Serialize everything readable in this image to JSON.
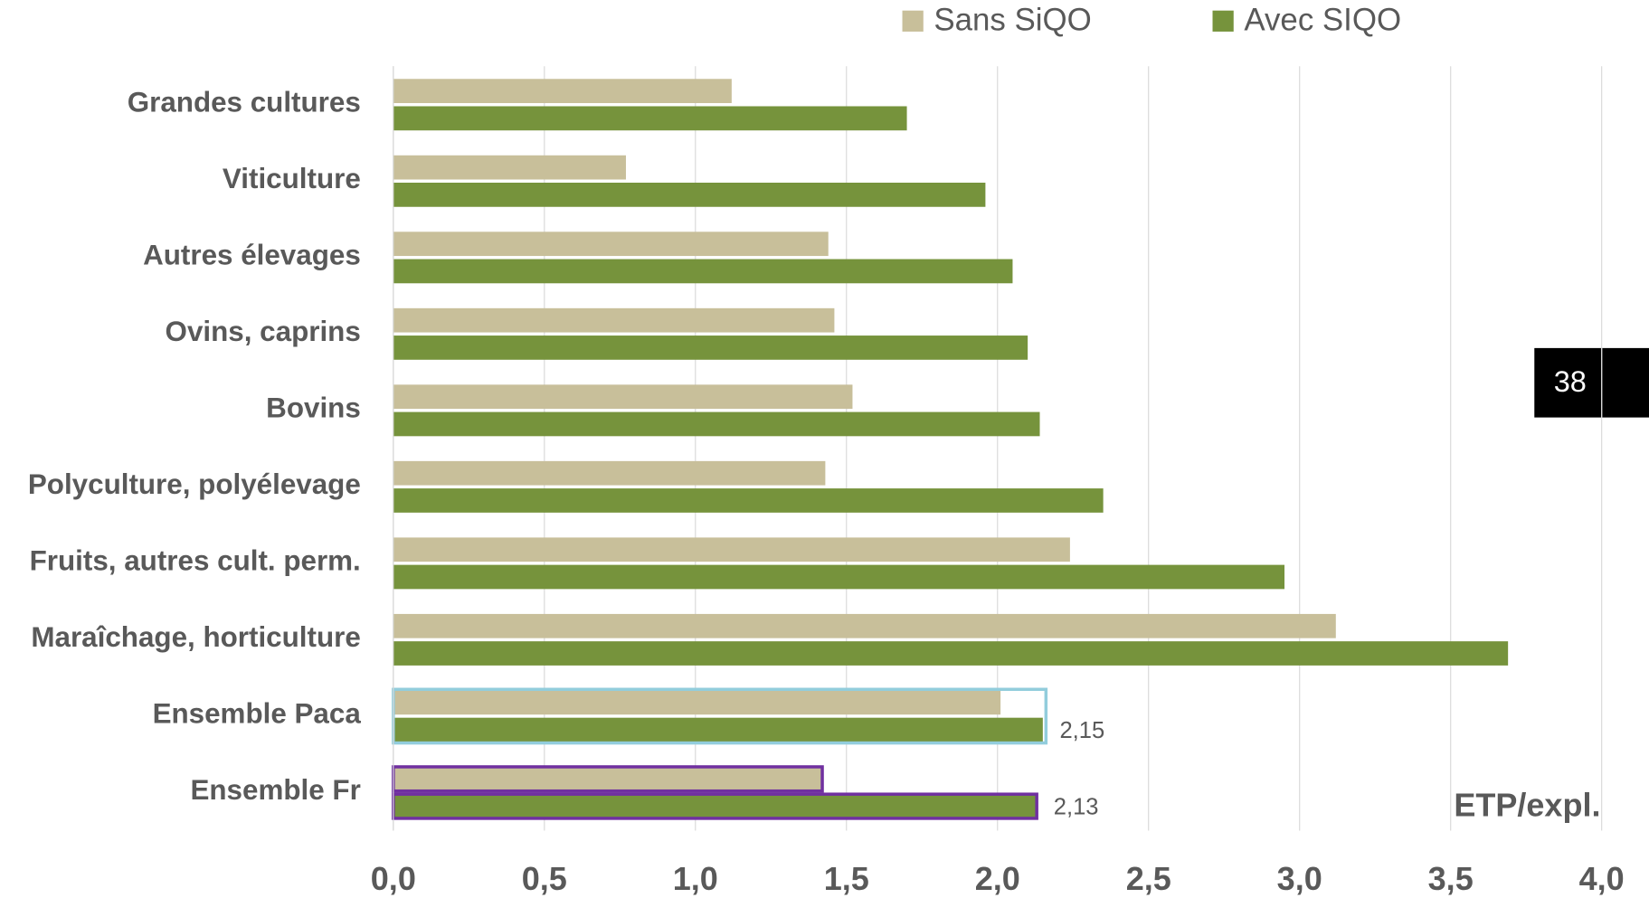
{
  "chart_data": {
    "type": "bar",
    "orientation": "horizontal",
    "categories": [
      "Grandes cultures",
      "Viticulture",
      "Autres élevages",
      "Ovins, caprins",
      "Bovins",
      "Polyculture, polyélevage",
      "Fruits, autres cult. perm.",
      "Maraîchage, horticulture",
      "Ensemble Paca",
      "Ensemble Fr"
    ],
    "series": [
      {
        "name": "Sans SiQO",
        "color": "#c8bf9a",
        "values": [
          1.12,
          0.77,
          1.44,
          1.46,
          1.52,
          1.43,
          2.24,
          3.12,
          2.01,
          1.42
        ]
      },
      {
        "name": "Avec SIQO",
        "color": "#76933c",
        "values": [
          1.7,
          1.96,
          2.05,
          2.1,
          2.14,
          2.35,
          2.95,
          3.69,
          2.15,
          2.13
        ],
        "value_labels": [
          null,
          null,
          null,
          null,
          null,
          null,
          null,
          null,
          "2,15",
          "2,13"
        ]
      }
    ],
    "highlight_colors": [
      null,
      null,
      null,
      null,
      null,
      null,
      null,
      null,
      "#92cddc",
      "#7030a0"
    ],
    "xlim": [
      0,
      4
    ],
    "xticks": [
      {
        "value": 0,
        "label": "0,0"
      },
      {
        "value": 0.5,
        "label": "0,5"
      },
      {
        "value": 1,
        "label": "1,0"
      },
      {
        "value": 1.5,
        "label": "1,5"
      },
      {
        "value": 2,
        "label": "2,0"
      },
      {
        "value": 2.5,
        "label": "2,5"
      },
      {
        "value": 3,
        "label": "3,0"
      },
      {
        "value": 3.5,
        "label": "3,5"
      },
      {
        "value": 4,
        "label": "4,0"
      }
    ],
    "grid": true,
    "legend": "top",
    "unit_label": "ETP/expl.",
    "page_number": "38"
  }
}
